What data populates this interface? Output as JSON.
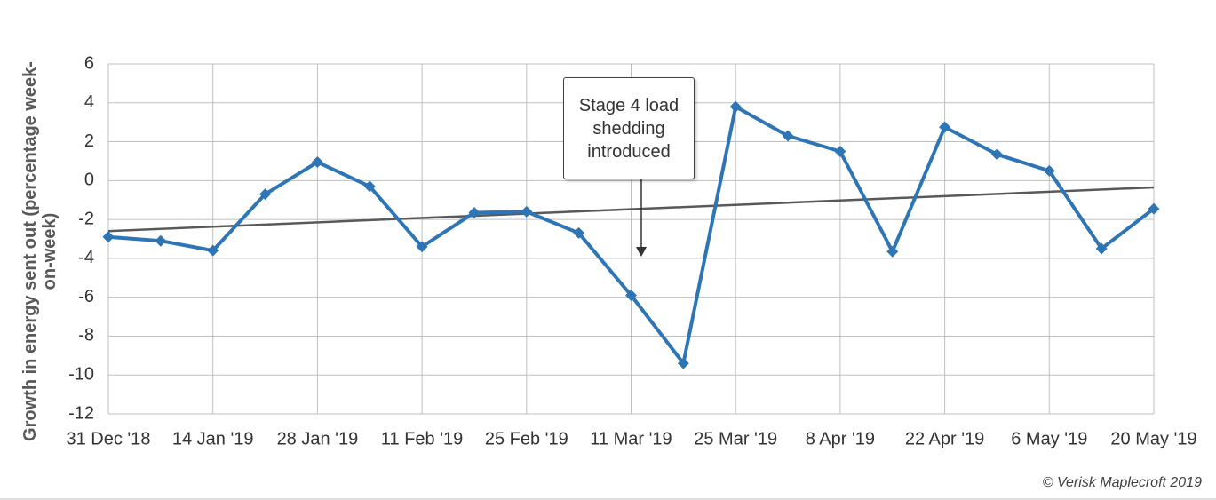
{
  "chart_data": {
    "type": "line",
    "y_label": "Growth in energy sent out (percentage week-on-week)",
    "annotation": "Stage 4 load shedding introduced",
    "credit": "© Verisk Maplecroft 2019",
    "categories": [
      "31 Dec '18",
      null,
      "14 Jan '19",
      null,
      "28 Jan '19",
      null,
      "11 Feb '19",
      null,
      "25 Feb '19",
      null,
      "11 Mar '19",
      null,
      "25 Mar '19",
      null,
      "8 Apr '19",
      null,
      "22 Apr '19",
      null,
      "6 May '19",
      null,
      "20 May '19"
    ],
    "series": [
      {
        "color": "#2e75b6",
        "values": [
          -2.9,
          -3.1,
          -3.6,
          -0.7,
          0.95,
          -0.3,
          -3.4,
          -1.65,
          -1.6,
          -2.7,
          -5.9,
          -9.4,
          3.8,
          2.3,
          1.5,
          -3.65,
          2.75,
          1.35,
          0.5,
          -3.5,
          -1.45
        ]
      }
    ],
    "trendline": {
      "color": "#595959",
      "values": [
        -2.6,
        -0.35
      ]
    },
    "ylim": [
      -12,
      6
    ],
    "yticks": [
      -12,
      -10,
      -8,
      -6,
      -4,
      -2,
      0,
      2,
      4,
      6
    ],
    "grid": true
  }
}
